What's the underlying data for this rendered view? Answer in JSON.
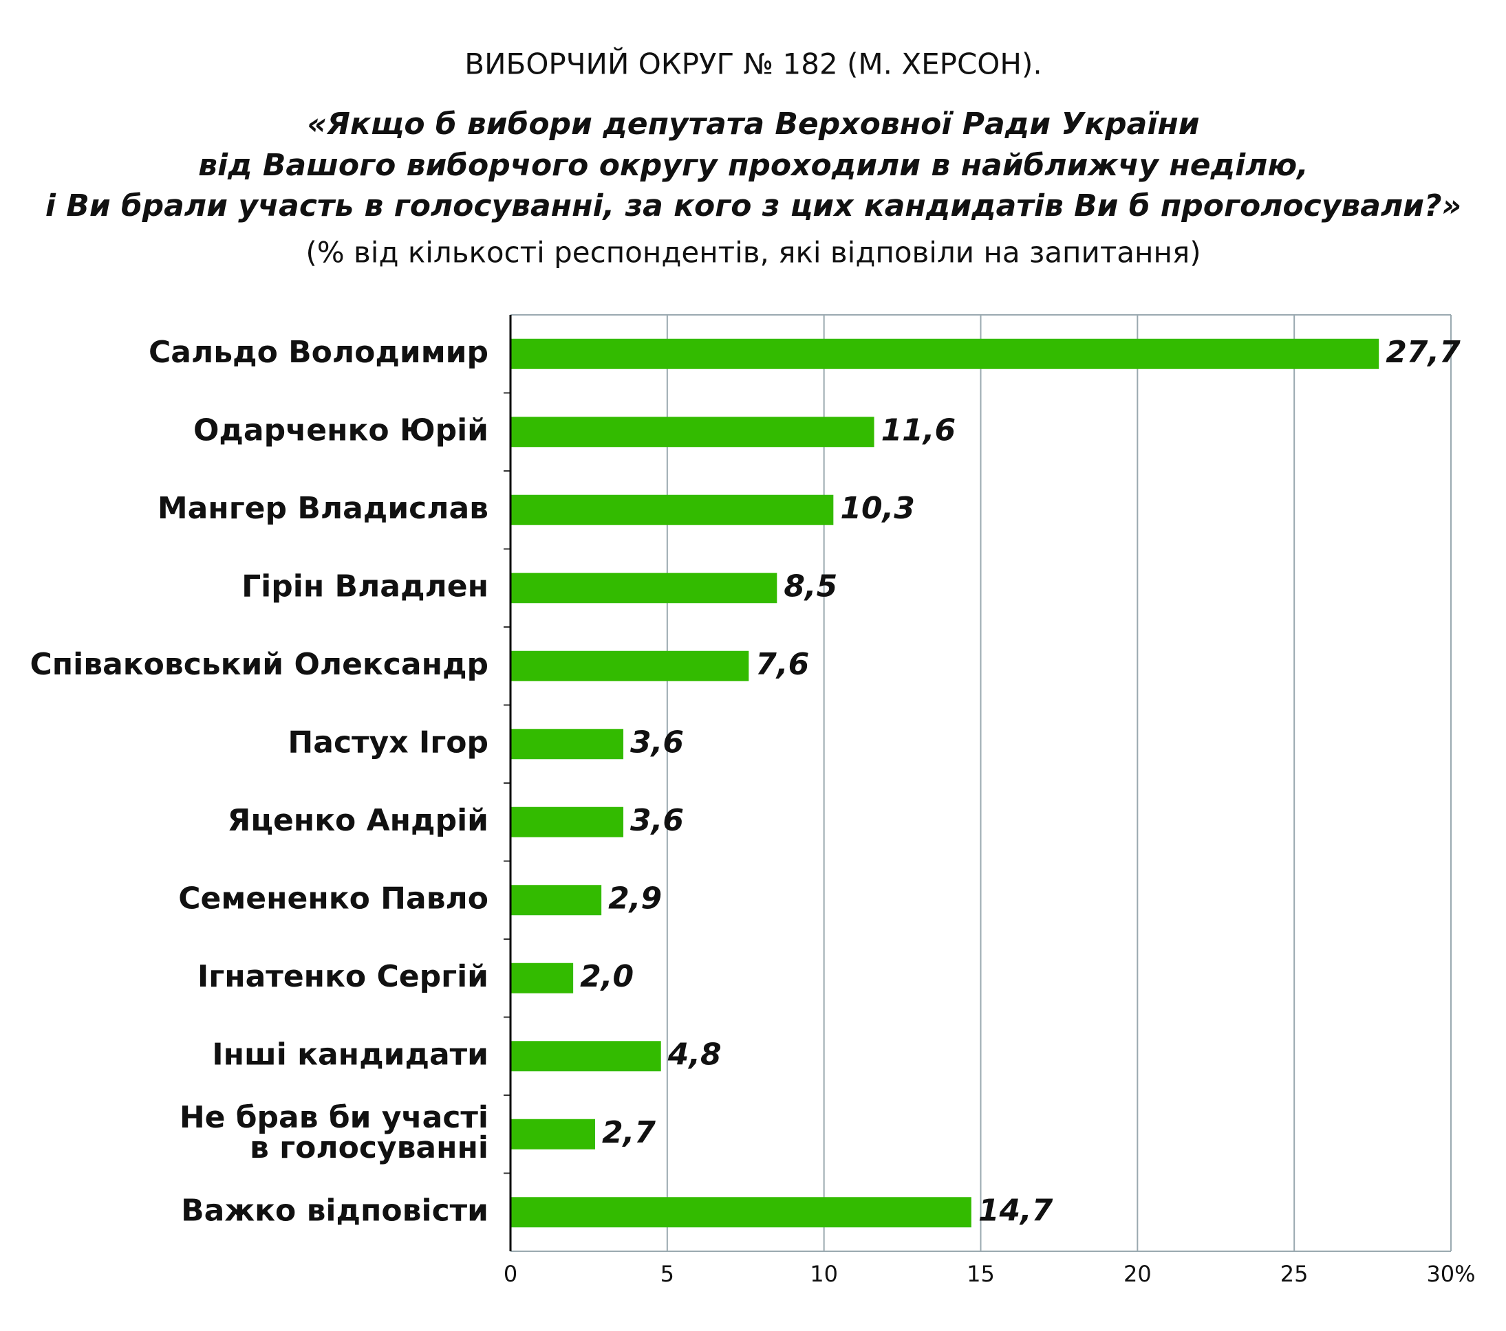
{
  "chart_data": {
    "type": "bar",
    "orientation": "horizontal",
    "title": "ВИБОРЧИЙ ОКРУГ № 182 (М. ХЕРСОН).",
    "subtitle": [
      "«Якщо б вибори депутата Верховної Ради України",
      "від Вашого виборчого округу проходили в найближчу неділю,",
      "і Ви брали участь в голосуванні, за кого з цих кандидатів Ви б проголосували?»"
    ],
    "note": "(% від кількості респондентів, які відповіли на запитання)",
    "categories": [
      "Сальдо Володимир",
      "Одарченко Юрій",
      "Мангер Владислав",
      "Гірін Владлен",
      "Співаковський Олександр",
      "Пастух Ігор",
      "Яценко Андрій",
      "Семененко Павло",
      "Ігнатенко Сергій",
      "Інші кандидати",
      "Не брав би участі\nв голосуванні",
      "Важко відповісти"
    ],
    "values": [
      27.7,
      11.6,
      10.3,
      8.5,
      7.6,
      3.6,
      3.6,
      2.9,
      2.0,
      4.8,
      2.7,
      14.7
    ],
    "value_labels": [
      "27,7",
      "11,6",
      "10,3",
      "8,5",
      "7,6",
      "3,6",
      "3,6",
      "2,9",
      "2,0",
      "4,8",
      "2,7",
      "14,7"
    ],
    "color": "#33bb00",
    "xlim": [
      0,
      30
    ],
    "xticks": [
      0,
      5,
      10,
      15,
      20,
      25,
      {
        "value": 30,
        "label": "30%"
      }
    ],
    "grid": true
  }
}
